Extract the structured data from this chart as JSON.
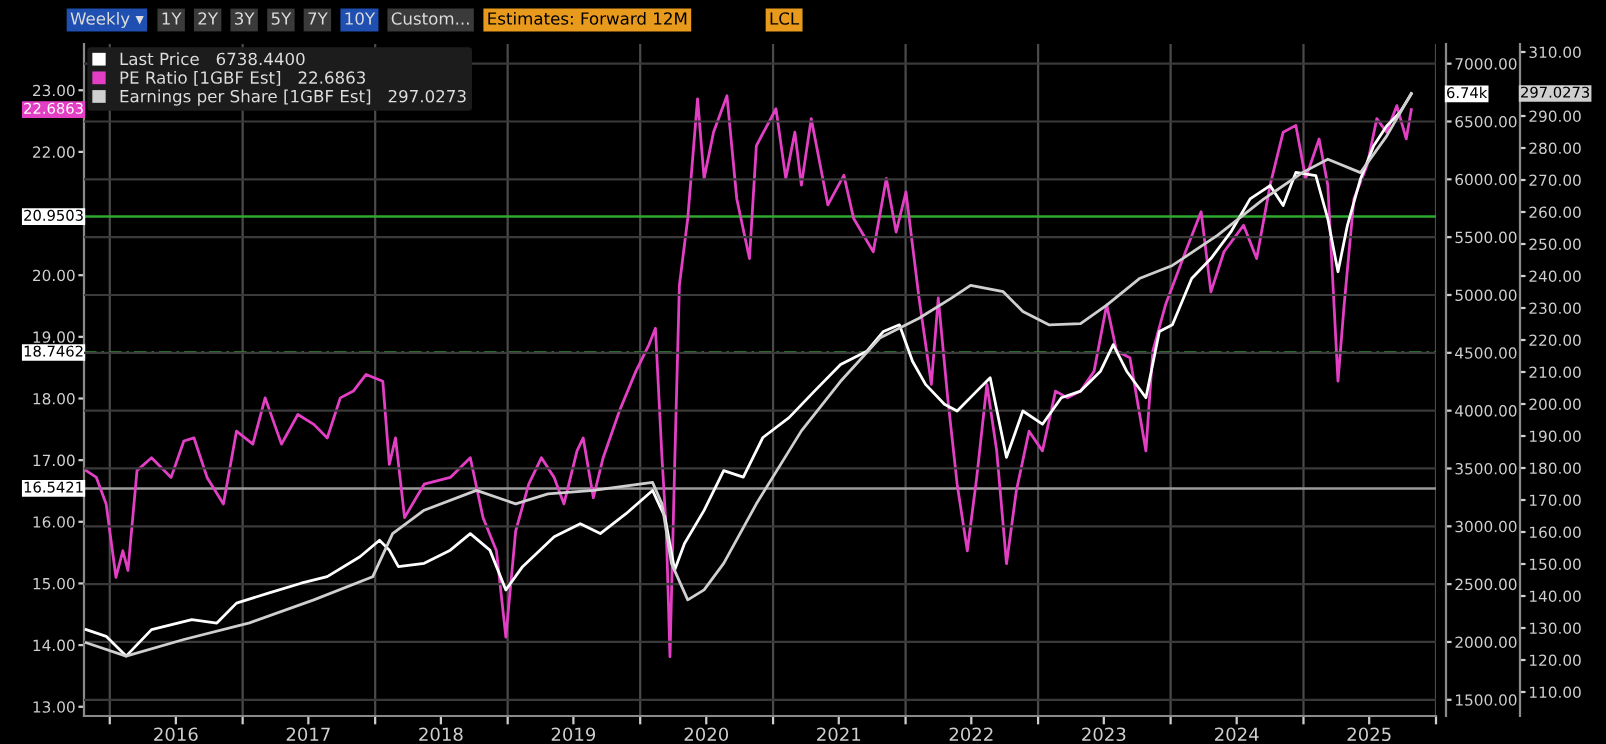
{
  "chart_data": {
    "type": "line",
    "xlim": [
      "2015-10-22",
      "2026-01-01"
    ],
    "xticks": [
      {
        "value": "2016-01-01",
        "label": null
      },
      {
        "value": "2016-07-01",
        "label": "2016"
      },
      {
        "value": "2017-01-01",
        "label": null
      },
      {
        "value": "2017-07-01",
        "label": "2017"
      },
      {
        "value": "2018-01-01",
        "label": null
      },
      {
        "value": "2018-07-01",
        "label": "2018"
      },
      {
        "value": "2019-01-01",
        "label": null
      },
      {
        "value": "2019-07-01",
        "label": "2019"
      },
      {
        "value": "2020-01-01",
        "label": null
      },
      {
        "value": "2020-07-01",
        "label": "2020"
      },
      {
        "value": "2021-01-01",
        "label": null
      },
      {
        "value": "2021-07-01",
        "label": "2021"
      },
      {
        "value": "2022-01-01",
        "label": null
      },
      {
        "value": "2022-07-01",
        "label": "2022"
      },
      {
        "value": "2023-01-01",
        "label": null
      },
      {
        "value": "2023-07-01",
        "label": "2023"
      },
      {
        "value": "2024-01-01",
        "label": null
      },
      {
        "value": "2024-07-01",
        "label": "2024"
      },
      {
        "value": "2025-01-01",
        "label": null
      },
      {
        "value": "2025-07-01",
        "label": "2025"
      },
      {
        "value": "2026-01-01",
        "label": null
      }
    ],
    "ylim": [
      12.85,
      23.75
    ],
    "yticks": [
      {
        "value": 13,
        "label": "13.00"
      },
      {
        "value": 14,
        "label": "14.00"
      },
      {
        "value": 15,
        "label": "15.00"
      },
      {
        "value": 16,
        "label": "16.00"
      },
      {
        "value": 17,
        "label": "17.00"
      },
      {
        "value": 18,
        "label": "18.00"
      },
      {
        "value": 19,
        "label": "19.00"
      },
      {
        "value": 20,
        "label": "20.00"
      },
      {
        "value": 21,
        "label": null
      },
      {
        "value": 22,
        "label": "22.00"
      },
      {
        "value": 23,
        "label": "23.00"
      }
    ],
    "y2lim": [
      1360,
      7170
    ],
    "y2ticks": [
      {
        "value": 1500,
        "label": "1500.00"
      },
      {
        "value": 2000,
        "label": "2000.00"
      },
      {
        "value": 2500,
        "label": "2500.00"
      },
      {
        "value": 3000,
        "label": "3000.00"
      },
      {
        "value": 3500,
        "label": "3500.00"
      },
      {
        "value": 4000,
        "label": "4000.00"
      },
      {
        "value": 4500,
        "label": "4500.00"
      },
      {
        "value": 5000,
        "label": "5000.00"
      },
      {
        "value": 5500,
        "label": "5500.00"
      },
      {
        "value": 6000,
        "label": "6000.00"
      },
      {
        "value": 6500,
        "label": "6500.00"
      },
      {
        "value": 7000,
        "label": "7000.00"
      }
    ],
    "y3lim": [
      102.5,
      312.5
    ],
    "y3ticks": [
      {
        "value": 110,
        "label": "110.00"
      },
      {
        "value": 120,
        "label": "120.00"
      },
      {
        "value": 130,
        "label": "130.00"
      },
      {
        "value": 140,
        "label": "140.00"
      },
      {
        "value": 150,
        "label": "150.00"
      },
      {
        "value": 160,
        "label": "160.00"
      },
      {
        "value": 170,
        "label": "170.00"
      },
      {
        "value": 180,
        "label": "180.00"
      },
      {
        "value": 190,
        "label": "190.00"
      },
      {
        "value": 200,
        "label": "200.00"
      },
      {
        "value": 210,
        "label": "210.00"
      },
      {
        "value": 220,
        "label": "220.00"
      },
      {
        "value": 230,
        "label": "230.00"
      },
      {
        "value": 240,
        "label": "240.00"
      },
      {
        "value": 250,
        "label": "250.00"
      },
      {
        "value": 260,
        "label": "260.00"
      },
      {
        "value": 270,
        "label": "270.00"
      },
      {
        "value": 280,
        "label": "280.00"
      },
      {
        "value": 290,
        "label": "290.00"
      },
      {
        "value": 310,
        "label": "310.00"
      }
    ],
    "grid": true,
    "legend": "top left",
    "series": [
      {
        "name": "Last Price   6738.4400",
        "color": "#ffffff",
        "axis": "y2",
        "x": [
          "2015-10-28",
          "2015-12-22",
          "2016-02-15",
          "2016-04-25",
          "2016-08-14",
          "2016-10-22",
          "2016-12-15",
          "2017-03-13",
          "2017-06-11",
          "2017-08-22",
          "2017-11-20",
          "2018-01-13",
          "2018-02-09",
          "2018-03-06",
          "2018-05-16",
          "2018-07-27",
          "2018-09-20",
          "2018-11-13",
          "2018-12-27",
          "2019-02-11",
          "2019-05-09",
          "2019-07-20",
          "2019-09-13",
          "2019-11-23",
          "2020-02-04",
          "2020-03-09",
          "2020-04-05",
          "2020-05-02",
          "2020-06-25",
          "2020-08-18",
          "2020-10-11",
          "2020-12-04",
          "2021-02-14",
          "2021-04-25",
          "2021-07-06",
          "2021-09-16",
          "2021-11-01",
          "2021-12-15",
          "2022-01-20",
          "2022-02-25",
          "2022-04-18",
          "2022-05-23",
          "2022-07-16",
          "2022-08-22",
          "2022-10-06",
          "2022-11-20",
          "2023-01-13",
          "2023-03-06",
          "2023-04-28",
          "2023-06-22",
          "2023-07-27",
          "2023-09-02",
          "2023-10-25",
          "2023-12-01",
          "2024-01-06",
          "2024-02-28",
          "2024-04-21",
          "2024-06-15",
          "2024-08-07",
          "2024-10-01",
          "2024-11-06",
          "2024-12-11",
          "2025-02-04",
          "2025-03-09",
          "2025-04-06",
          "2025-05-02",
          "2025-06-07",
          "2025-07-13",
          "2025-08-18",
          "2025-09-23",
          "2025-10-25"
        ],
        "values": [
          2107,
          2049,
          1878,
          2107,
          2193,
          2164,
          2336,
          2422,
          2508,
          2565,
          2737,
          2880,
          2794,
          2651,
          2680,
          2794,
          2937,
          2794,
          2450,
          2651,
          2909,
          3023,
          2937,
          3109,
          3310,
          3081,
          2622,
          2851,
          3138,
          3482,
          3425,
          3768,
          3940,
          4169,
          4399,
          4513,
          4685,
          4742,
          4427,
          4227,
          4055,
          3997,
          4169,
          4284,
          3596,
          3997,
          3883,
          4112,
          4169,
          4341,
          4571,
          4341,
          4112,
          4685,
          4742,
          5143,
          5315,
          5545,
          5831,
          5946,
          5774,
          6060,
          6032,
          5659,
          5201,
          5602,
          6003,
          6289,
          6461,
          6576,
          6738.44
        ]
      },
      {
        "name": "PE Ratio [1GBF Est]   22.6863",
        "color": "#e23fc4",
        "x": [
          "2015-10-28",
          "2015-11-25",
          "2015-12-22",
          "2016-01-18",
          "2016-02-06",
          "2016-02-20",
          "2016-03-16",
          "2016-04-25",
          "2016-06-18",
          "2016-07-23",
          "2016-08-20",
          "2016-09-25",
          "2016-11-09",
          "2016-12-15",
          "2017-01-29",
          "2017-03-04",
          "2017-04-18",
          "2017-06-02",
          "2017-07-16",
          "2017-08-22",
          "2017-09-27",
          "2017-11-02",
          "2017-12-07",
          "2018-01-22",
          "2018-02-09",
          "2018-02-26",
          "2018-03-23",
          "2018-05-16",
          "2018-07-27",
          "2018-09-20",
          "2018-10-25",
          "2018-12-01",
          "2018-12-27",
          "2019-01-23",
          "2019-02-28",
          "2019-04-04",
          "2019-05-09",
          "2019-06-05",
          "2019-07-11",
          "2019-07-28",
          "2019-08-25",
          "2019-09-21",
          "2019-11-05",
          "2019-12-20",
          "2020-01-25",
          "2020-02-12",
          "2020-03-01",
          "2020-03-13",
          "2020-03-23",
          "2020-04-05",
          "2020-04-18",
          "2020-05-11",
          "2020-06-07",
          "2020-06-25",
          "2020-07-21",
          "2020-08-27",
          "2020-09-23",
          "2020-10-28",
          "2020-11-16",
          "2021-01-09",
          "2021-02-05",
          "2021-03-02",
          "2021-03-20",
          "2021-04-16",
          "2021-06-01",
          "2021-07-15",
          "2021-08-11",
          "2021-10-04",
          "2021-11-09",
          "2021-12-06",
          "2022-01-02",
          "2022-02-07",
          "2022-03-13",
          "2022-04-01",
          "2022-04-27",
          "2022-05-23",
          "2022-06-20",
          "2022-07-16",
          "2022-08-13",
          "2022-09-09",
          "2022-10-06",
          "2022-11-02",
          "2022-12-07",
          "2023-01-13",
          "2023-02-18",
          "2023-03-23",
          "2023-04-28",
          "2023-06-04",
          "2023-07-09",
          "2023-08-05",
          "2023-09-11",
          "2023-10-25",
          "2023-11-13",
          "2023-12-18",
          "2024-02-11",
          "2024-03-25",
          "2024-04-21",
          "2024-05-27",
          "2024-07-20",
          "2024-08-25",
          "2024-10-01",
          "2024-11-06",
          "2024-12-11",
          "2025-01-07",
          "2025-02-13",
          "2025-03-09",
          "2025-04-06",
          "2025-04-23",
          "2025-05-20",
          "2025-06-25",
          "2025-07-22",
          "2025-08-18",
          "2025-09-15",
          "2025-10-11",
          "2025-10-25"
        ],
        "values": [
          16.83,
          16.72,
          16.29,
          15.1,
          15.53,
          15.21,
          16.83,
          17.04,
          16.72,
          17.31,
          17.36,
          16.72,
          16.29,
          17.47,
          17.26,
          18.01,
          17.26,
          17.74,
          17.58,
          17.36,
          18.01,
          18.12,
          18.39,
          18.28,
          16.93,
          17.36,
          16.07,
          16.61,
          16.72,
          17.04,
          16.07,
          15.53,
          14.13,
          15.85,
          16.61,
          17.04,
          16.72,
          16.29,
          17.15,
          17.36,
          16.39,
          17.04,
          17.8,
          18.44,
          18.87,
          19.14,
          17.04,
          15.85,
          13.81,
          16.93,
          19.84,
          20.92,
          22.86,
          21.57,
          22.32,
          22.91,
          21.24,
          20.27,
          22.1,
          22.7,
          21.57,
          22.32,
          21.46,
          22.54,
          21.14,
          21.62,
          20.92,
          20.38,
          21.57,
          20.7,
          21.35,
          19.63,
          18.23,
          19.63,
          18.01,
          16.61,
          15.53,
          16.72,
          18.23,
          17.15,
          15.32,
          16.5,
          17.47,
          17.15,
          18.12,
          18.01,
          18.12,
          18.44,
          19.52,
          18.77,
          18.66,
          17.15,
          18.77,
          19.52,
          20.38,
          21.03,
          19.73,
          20.38,
          20.81,
          20.27,
          21.46,
          22.32,
          22.43,
          21.57,
          22.21,
          21.46,
          18.28,
          19.52,
          21.24,
          21.78,
          22.54,
          22.32,
          22.75,
          22.21,
          22.6863
        ]
      },
      {
        "name": "Earnings per Share [1GBF Est]   297.0273",
        "color": "#cfcfcf",
        "axis": "y3",
        "x": [
          "2015-10-28",
          "2016-02-15",
          "2016-07-23",
          "2017-01-20",
          "2017-07-16",
          "2017-12-25",
          "2018-02-18",
          "2018-05-16",
          "2018-10-07",
          "2019-01-23",
          "2019-04-22",
          "2019-08-25",
          "2020-02-04",
          "2020-03-01",
          "2020-03-27",
          "2020-05-11",
          "2020-06-25",
          "2020-08-18",
          "2020-11-16",
          "2021-03-20",
          "2021-07-06",
          "2021-10-22",
          "2022-02-07",
          "2022-05-06",
          "2022-06-29",
          "2022-09-27",
          "2022-11-20",
          "2023-02-01",
          "2023-04-28",
          "2023-07-09",
          "2023-10-07",
          "2024-01-06",
          "2024-05-09",
          "2024-09-13",
          "2024-12-29",
          "2025-03-09",
          "2025-06-07",
          "2025-08-18",
          "2025-10-25"
        ],
        "values": [
          125.4,
          121.2,
          126.4,
          131.6,
          138.8,
          146.0,
          159.5,
          166.8,
          173.0,
          168.8,
          171.9,
          173.0,
          175.5,
          168.8,
          150.2,
          138.8,
          141.9,
          150.2,
          168.8,
          191.6,
          207.1,
          220.6,
          226.8,
          233.0,
          237.1,
          235.1,
          228.9,
          224.7,
          225.1,
          230.9,
          239.2,
          243.3,
          252.7,
          264.0,
          272.3,
          276.5,
          272.3,
          283.7,
          297.0273
        ]
      }
    ],
    "ref_lines": [
      {
        "axis": "y",
        "value": 20.9503,
        "label": "20.9503",
        "color": "#2fa82f",
        "line_style": "solid"
      },
      {
        "axis": "y",
        "value": 18.7462,
        "label": "18.7462",
        "color": "#2fa82f",
        "line_style": "dashed"
      },
      {
        "axis": "y",
        "value": 16.5421,
        "label": "16.5421",
        "color": "#9a9a9a",
        "line_style": "solid"
      }
    ],
    "annotations": [
      "Weekly ▾",
      "1Y",
      "2Y",
      "3Y",
      "5Y",
      "7Y",
      "10Y",
      "Custom...",
      "Estimates: Forward 12M",
      "LCL",
      "6.74k",
      "22.6863",
      "297.0273"
    ]
  }
}
